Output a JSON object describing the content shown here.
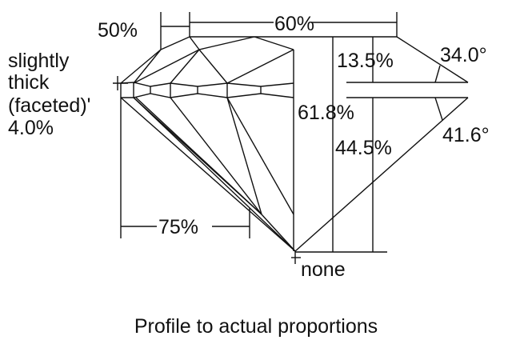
{
  "diagram": {
    "girdle_label": [
      "slightly",
      "thick",
      "(faceted)'",
      "4.0%"
    ],
    "star_length": "50%",
    "table": "60%",
    "crown_height": "13.5%",
    "crown_angle": "34.0°",
    "total_depth": "61.8%",
    "pavilion_depth": "44.5%",
    "pavilion_angle": "41.6°",
    "lower_half_length": "75%",
    "culet": "none",
    "caption": "Profile to actual proportions"
  }
}
